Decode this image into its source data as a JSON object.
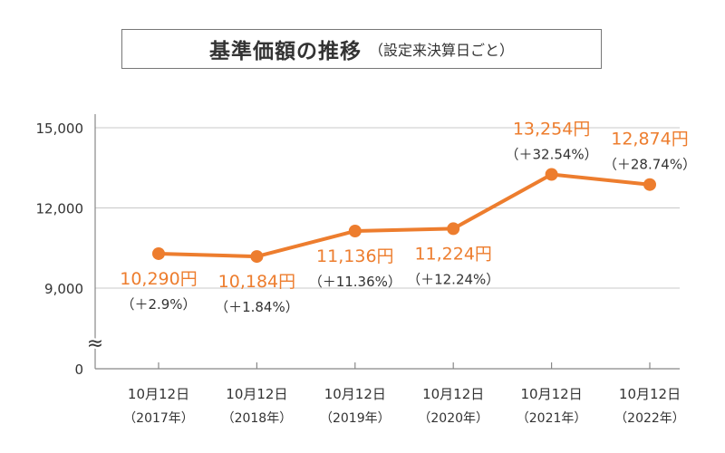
{
  "title": "基準価額の推移",
  "subtitle": "（設定来決算日ごと）",
  "colors": {
    "line": "#ed7d2e",
    "label": "#ed7d2e",
    "text": "#333333",
    "grid": "#c8c8c8",
    "axis": "#888888"
  },
  "chart_data": {
    "type": "line",
    "categories": [
      "10月12日（2017年）",
      "10月12日（2018年）",
      "10月12日（2019年）",
      "10月12日（2020年）",
      "10月12日（2021年）",
      "10月12日（2022年）"
    ],
    "x_label_lines": [
      [
        "10月12日",
        "（2017年）"
      ],
      [
        "10月12日",
        "（2018年）"
      ],
      [
        "10月12日",
        "（2019年）"
      ],
      [
        "10月12日",
        "（2020年）"
      ],
      [
        "10月12日",
        "（2021年）"
      ],
      [
        "10月12日",
        "（2022年）"
      ]
    ],
    "values": [
      10290,
      10184,
      11136,
      11224,
      13254,
      12874
    ],
    "value_labels": [
      "10,290円",
      "10,184円",
      "11,136円",
      "11,224円",
      "13,254円",
      "12,874円"
    ],
    "change_labels": [
      "（＋2.9%）",
      "（＋1.84%）",
      "（＋11.36%）",
      "（＋12.24%）",
      "（＋32.54%）",
      "（＋28.74%）"
    ],
    "y_ticks": [
      {
        "value": 15000,
        "label": "15,000"
      },
      {
        "value": 12000,
        "label": "12,000"
      },
      {
        "value": 9000,
        "label": "9,000"
      }
    ],
    "y_zero_label": "0",
    "axis_break_symbol": "≈",
    "ylim": [
      0,
      15000
    ],
    "grid": true,
    "xlabel": "",
    "ylabel": ""
  }
}
